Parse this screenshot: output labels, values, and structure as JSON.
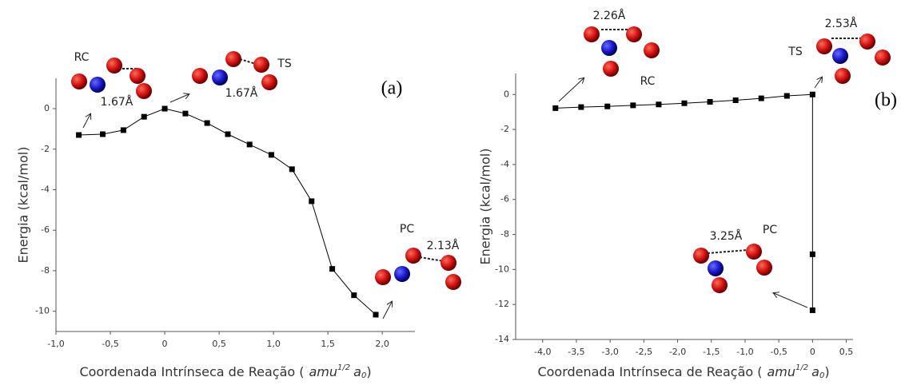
{
  "chart_data": [
    {
      "type": "line",
      "panel_label": "(a)",
      "y_label": "Energia (kcal/mol)",
      "x_label": {
        "text": "Coordenada Intrínseca de Reação (",
        "unit": "amu",
        "unit_exp": "1/2",
        "unit2": "a",
        "unit2_sub": "0",
        "close": ")"
      },
      "annotations": [
        "RC",
        "TS",
        "1.67Å",
        "1.67Å",
        "PC",
        "2.13Å"
      ],
      "x": [
        -0.79,
        -0.57,
        -0.38,
        -0.19,
        0,
        0.19,
        0.39,
        0.58,
        0.78,
        0.98,
        1.17,
        1.35,
        1.54,
        1.74,
        1.94
      ],
      "series": [
        {
          "color": "#000000",
          "values": [
            -1.3,
            -1.26,
            -1.06,
            -0.4,
            0,
            -0.24,
            -0.71,
            -1.26,
            -1.77,
            -2.28,
            -2.99,
            -4.57,
            -7.91,
            -9.21,
            -10.17
          ]
        }
      ],
      "xlim": [
        -1.0,
        2.3
      ],
      "ylim": [
        -11,
        1.5
      ],
      "xticks": [
        {
          "value": -1.0,
          "label": "-1,0"
        },
        {
          "value": -0.5,
          "label": "-0,5"
        },
        0,
        {
          "value": 0.5,
          "label": "0,5"
        },
        {
          "value": 1.0,
          "label": "1,0"
        },
        {
          "value": 1.5,
          "label": "1,5"
        },
        {
          "value": 2.0,
          "label": "2,0"
        }
      ],
      "yticks": [
        -10,
        -8,
        -6,
        -4,
        -2,
        0
      ],
      "grid": false
    },
    {
      "type": "line",
      "panel_label": "(b)",
      "y_label": "Energia (kcal/mol)",
      "x_label": {
        "text": "Coordenada Intrínseca de Reação (",
        "unit": "amu",
        "unit_exp": "1/2",
        "unit2": "a",
        "unit2_sub": "0",
        "close": ")"
      },
      "annotations": [
        "RC",
        "TS",
        "2.26Å",
        "2.53Å",
        "3.25Å",
        "PC"
      ],
      "x": [
        -3.81,
        -3.43,
        -3.04,
        -2.66,
        -2.28,
        -1.9,
        -1.52,
        -1.14,
        -0.76,
        -0.38,
        0,
        0,
        0
      ],
      "series": [
        {
          "color": "#000000",
          "values": [
            -0.78,
            -0.72,
            -0.68,
            -0.62,
            -0.57,
            -0.5,
            -0.42,
            -0.33,
            -0.22,
            -0.08,
            0,
            -9.13,
            -12.33
          ]
        }
      ],
      "xlim": [
        -4.4,
        0.6
      ],
      "ylim": [
        -14,
        1.2
      ],
      "xticks": [
        {
          "value": -4.0,
          "label": "-4,0"
        },
        {
          "value": -3.5,
          "label": "-3,5"
        },
        {
          "value": -3.0,
          "label": "-3,0"
        },
        {
          "value": -2.5,
          "label": "-2,5"
        },
        {
          "value": -2.0,
          "label": "-2,0"
        },
        {
          "value": -1.5,
          "label": "-1,5"
        },
        {
          "value": -1.0,
          "label": "-1,0"
        },
        {
          "value": -0.5,
          "label": "-0,5"
        },
        0,
        {
          "value": 0.5,
          "label": "0,5"
        }
      ],
      "yticks": [
        -14,
        -12,
        -10,
        -8,
        -6,
        -4,
        -2,
        0
      ],
      "grid": false
    }
  ]
}
